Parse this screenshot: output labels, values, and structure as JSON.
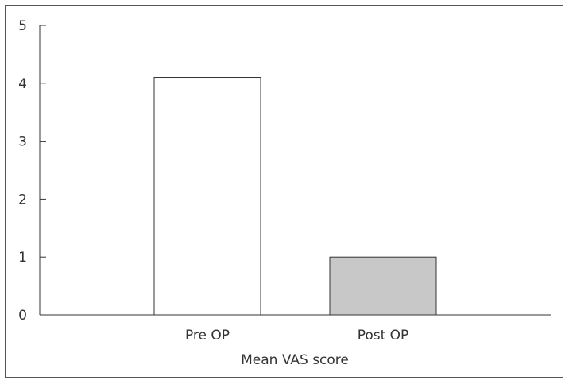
{
  "chart_data": {
    "type": "bar",
    "categories": [
      "Pre OP",
      "Post OP"
    ],
    "values": [
      4.1,
      1.0
    ],
    "bar_colors": [
      "#ffffff",
      "#c8c8c8"
    ],
    "xlabel": "Mean VAS score",
    "ylabel": "",
    "ylim": [
      0,
      5
    ],
    "yticks": [
      0,
      1,
      2,
      3,
      4,
      5
    ],
    "grid": false,
    "legend": "none"
  }
}
